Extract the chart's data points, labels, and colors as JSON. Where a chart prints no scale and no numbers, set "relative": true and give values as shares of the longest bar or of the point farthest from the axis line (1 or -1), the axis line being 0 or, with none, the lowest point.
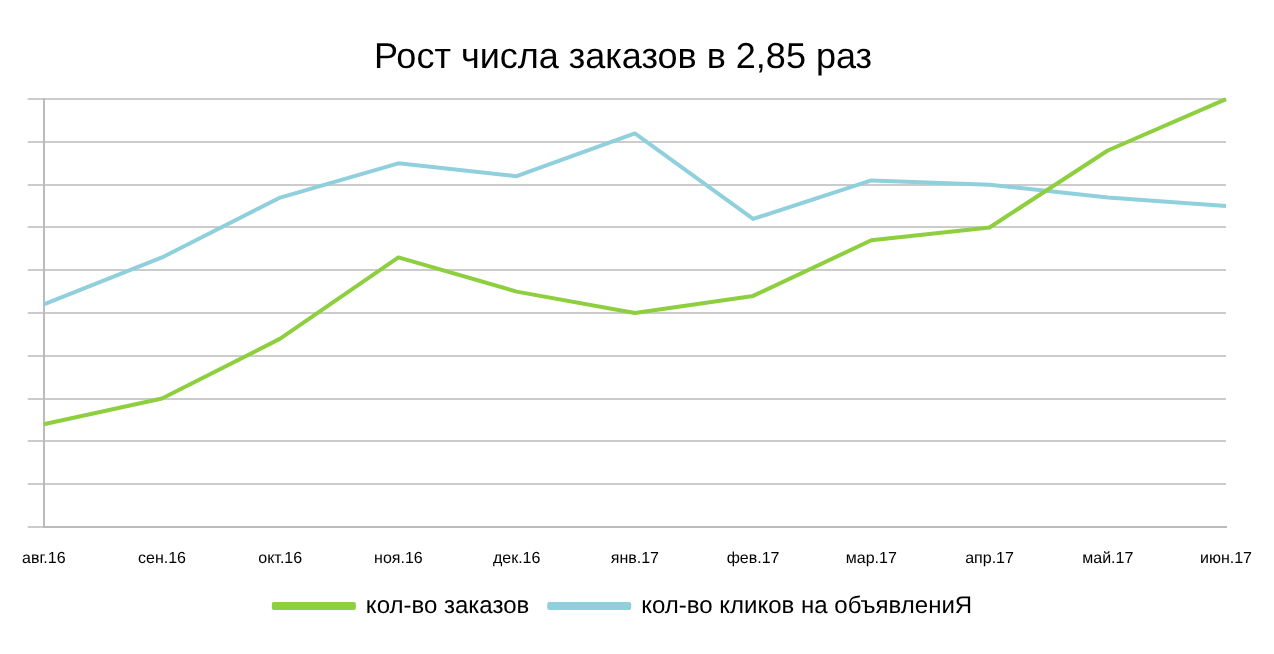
{
  "chart_data": {
    "type": "line",
    "title": "Рост числа заказов в 2,85 раз",
    "categories": [
      "авг.16",
      "сен.16",
      "окт.16",
      "ноя.16",
      "дек.16",
      "янв.17",
      "фев.17",
      "мар.17",
      "апр.17",
      "май.17",
      "июн.17"
    ],
    "relative": true,
    "grid": "y",
    "legend": "bottom",
    "marker": "none",
    "line_style": "solid",
    "series": [
      {
        "name": "кол-во заказов",
        "color": "#8dcf3f",
        "values": [
          0.24,
          0.3,
          0.44,
          0.63,
          0.55,
          0.5,
          0.54,
          0.67,
          0.7,
          0.88,
          1
        ]
      },
      {
        "name": "кол-во кликов на объявлениЯ",
        "color": "#8fd0dc",
        "values": [
          0.52,
          0.63,
          0.77,
          0.85,
          0.82,
          0.92,
          0.72,
          0.81,
          0.8,
          0.77,
          0.75
        ]
      }
    ]
  }
}
